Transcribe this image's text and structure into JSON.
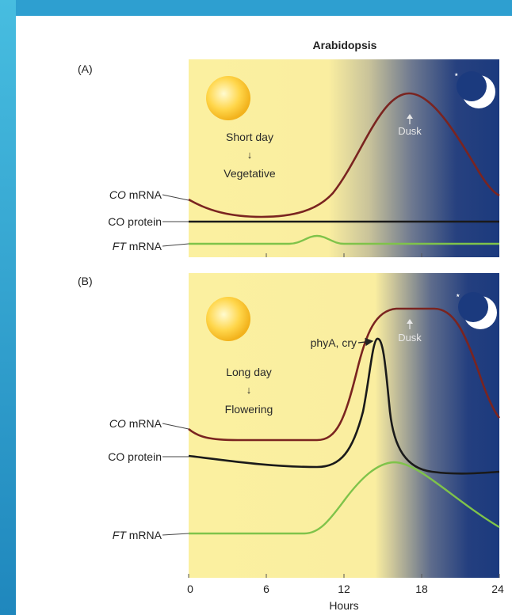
{
  "title": "Arabidopsis",
  "panels": [
    {
      "letter": "(A)",
      "day_label": "Short day",
      "arrow_glyph": "↓",
      "outcome_label": "Vegetative",
      "dusk_label": "Dusk",
      "curve_labels": {
        "co_mrna_italic": "CO",
        "co_mrna_rest": " mRNA",
        "co_protein": "CO protein",
        "ft_mrna_italic": "FT",
        "ft_mrna_rest": " mRNA"
      }
    },
    {
      "letter": "(B)",
      "day_label": "Long day",
      "arrow_glyph": "↓",
      "outcome_label": "Flowering",
      "dusk_label": "Dusk",
      "photoreceptor_label": "phyA, cry",
      "curve_labels": {
        "co_mrna_italic": "CO",
        "co_mrna_rest": " mRNA",
        "co_protein": "CO protein",
        "ft_mrna_italic": "FT",
        "ft_mrna_rest": " mRNA"
      }
    }
  ],
  "x_axis": {
    "label": "Hours",
    "ticks": [
      "0",
      "6",
      "12",
      "18",
      "24"
    ]
  },
  "colors": {
    "day": "#fbf0a0",
    "night": "#1b3a7e",
    "co_mrna": "#7a2420",
    "co_protein": "#1a1a1a",
    "ft_mrna": "#7fc34a"
  }
}
